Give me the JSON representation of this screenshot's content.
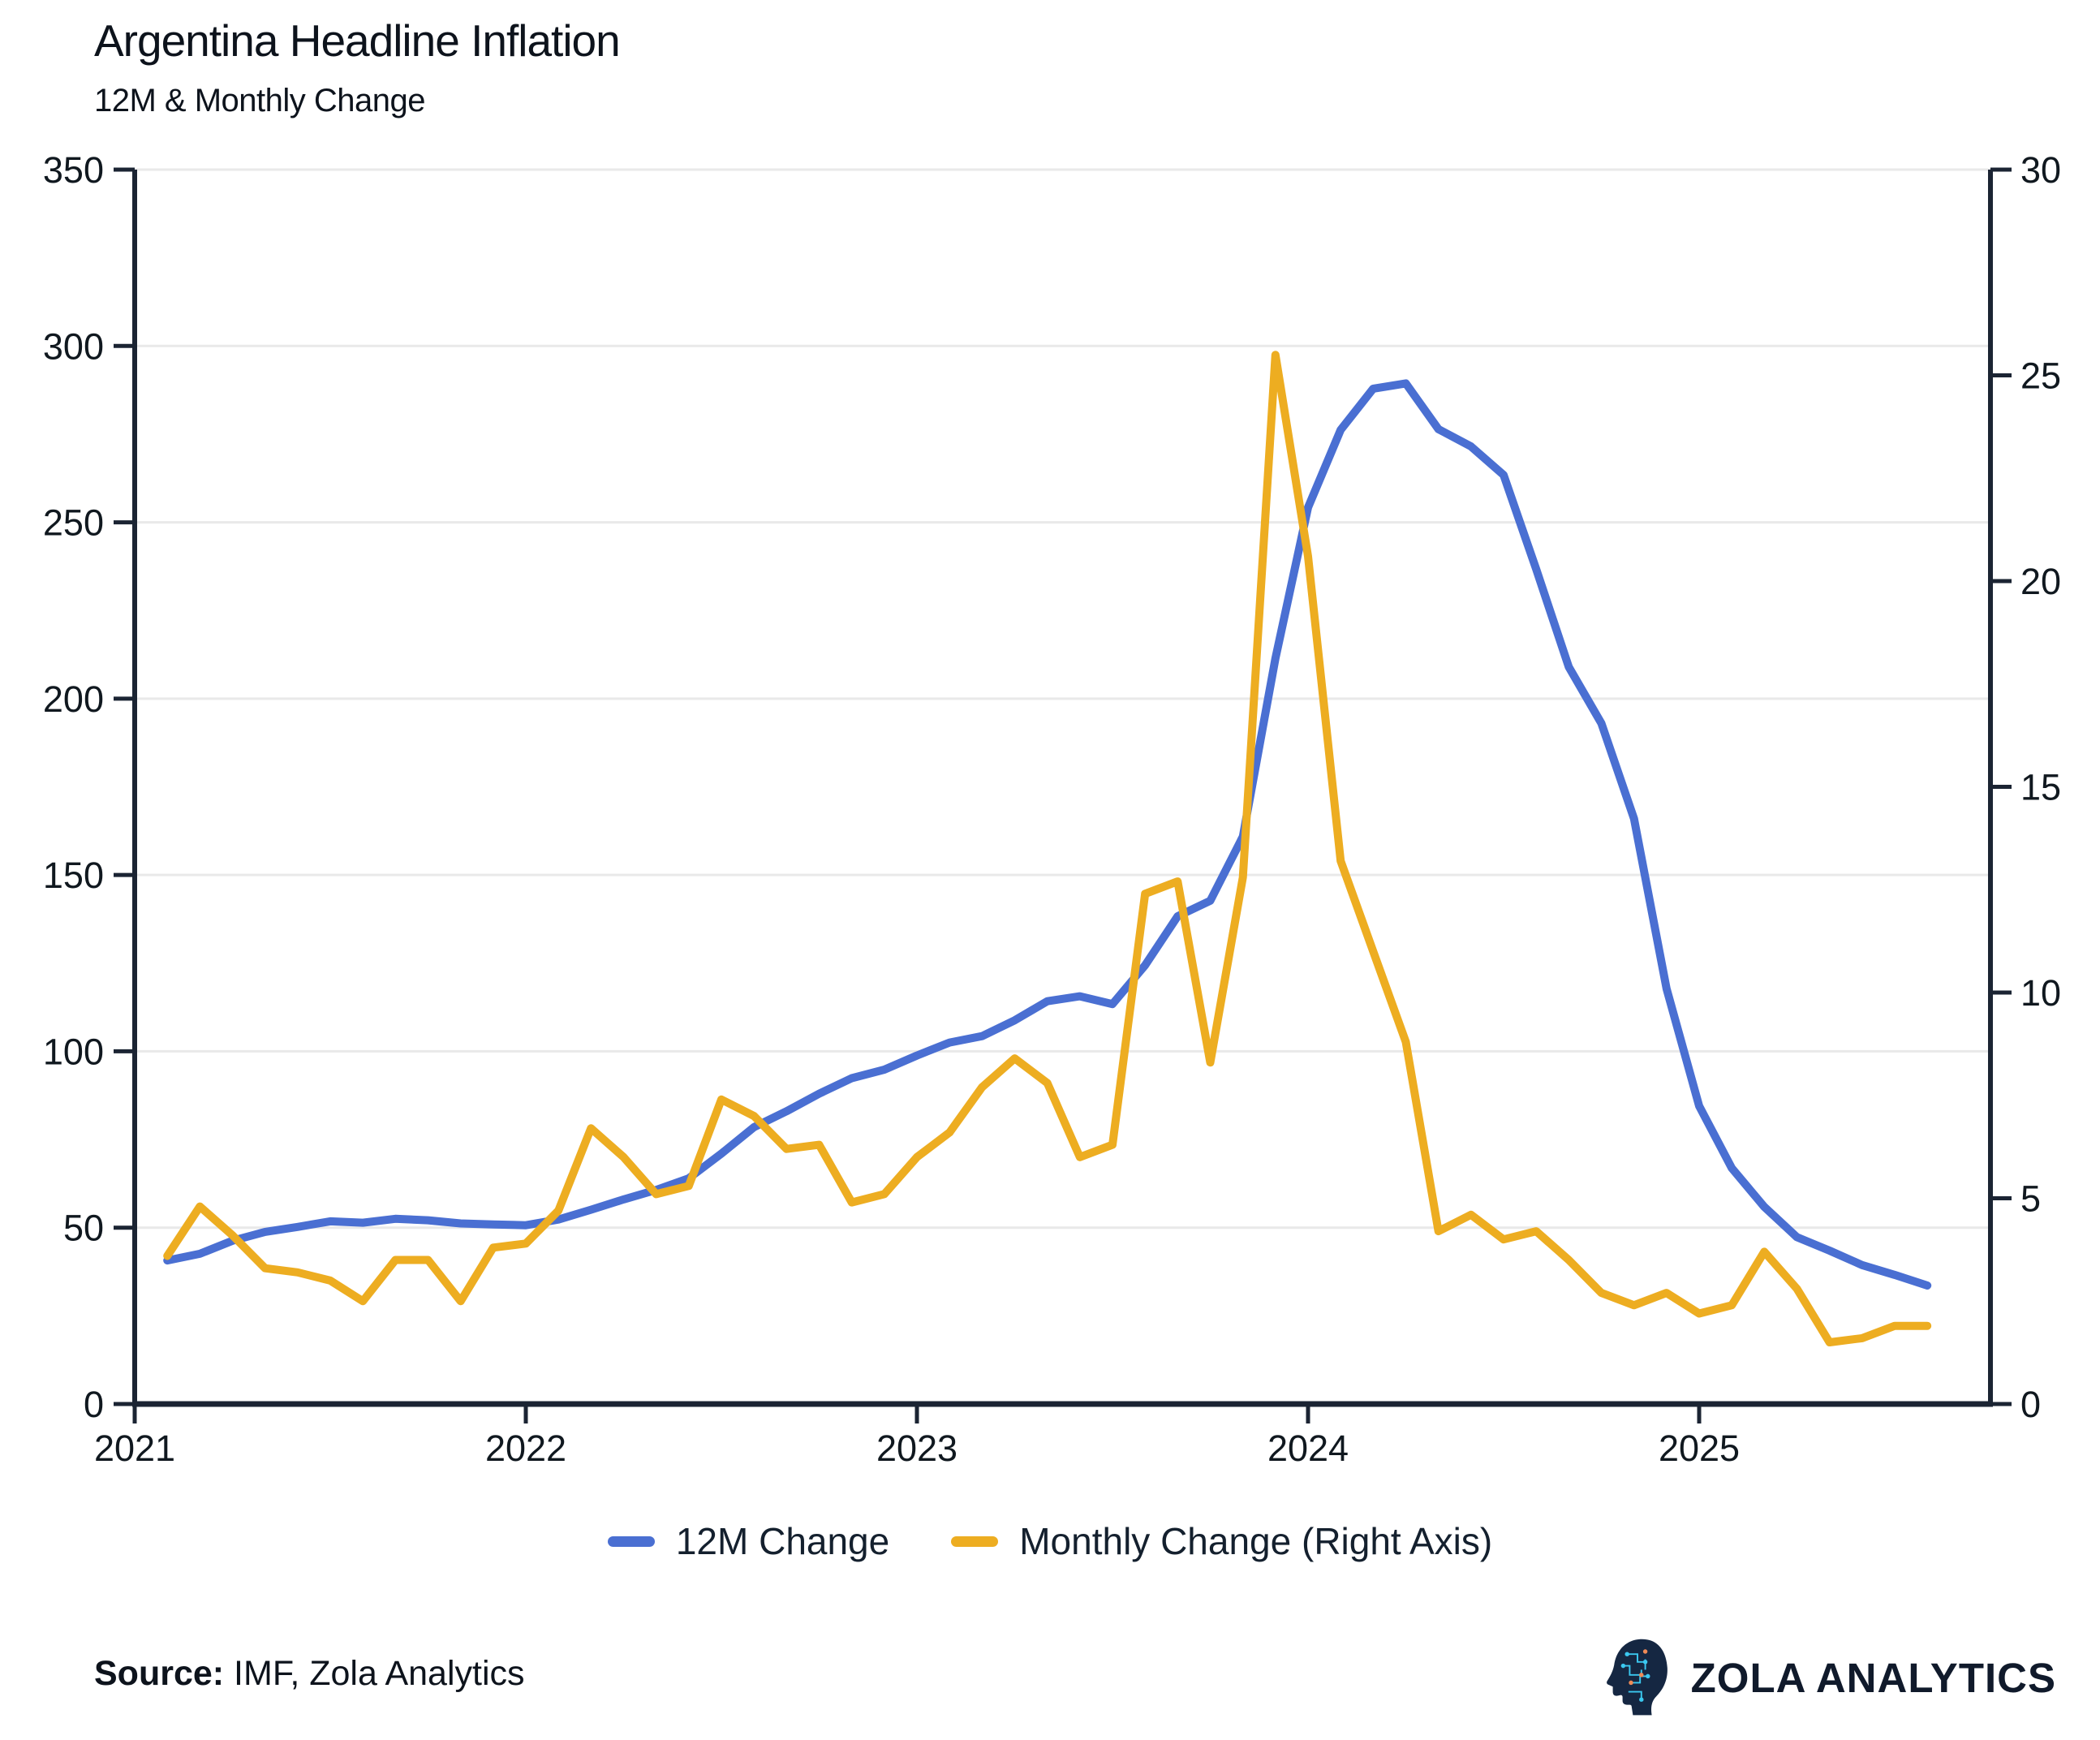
{
  "header": {
    "title": "Argentina Headline Inflation",
    "subtitle": "12M & Monthly Change"
  },
  "legend": [
    {
      "label": "12M Change",
      "color": "#4A6FD2"
    },
    {
      "label": "Monthly Change (Right Axis)",
      "color": "#EDAD21"
    }
  ],
  "footer": {
    "source_label": "Source:",
    "source_text": " IMF, Zola Analytics",
    "brand": "ZOLA ANALYTICS"
  },
  "colors": {
    "axis": "#1b2433",
    "tick_text": "#10181f",
    "grid": "#e9e9e9",
    "blue": "#4A6FD2",
    "yellow": "#EDAD21",
    "logo_navy": "#152742",
    "logo_cyan": "#3bc8f0",
    "logo_orange": "#ef8a56"
  },
  "chart_data": {
    "type": "line",
    "title": "Argentina Headline Inflation",
    "subtitle": "12M & Monthly Change",
    "x_months": [
      "2021-02",
      "2021-03",
      "2021-04",
      "2021-05",
      "2021-06",
      "2021-07",
      "2021-08",
      "2021-09",
      "2021-10",
      "2021-11",
      "2021-12",
      "2022-01",
      "2022-02",
      "2022-03",
      "2022-04",
      "2022-05",
      "2022-06",
      "2022-07",
      "2022-08",
      "2022-09",
      "2022-10",
      "2022-11",
      "2022-12",
      "2023-01",
      "2023-02",
      "2023-03",
      "2023-04",
      "2023-05",
      "2023-06",
      "2023-07",
      "2023-08",
      "2023-09",
      "2023-10",
      "2023-11",
      "2023-12",
      "2024-01",
      "2024-02",
      "2024-03",
      "2024-04",
      "2024-05",
      "2024-06",
      "2024-07",
      "2024-08",
      "2024-09",
      "2024-10",
      "2024-11",
      "2024-12",
      "2025-01",
      "2025-02",
      "2025-03",
      "2025-04",
      "2025-05",
      "2025-06",
      "2025-07",
      "2025-08"
    ],
    "series": [
      {
        "name": "12M Change",
        "axis": "left",
        "color": "#4A6FD2",
        "values": [
          40.7,
          42.6,
          46.3,
          48.8,
          50.2,
          51.8,
          51.4,
          52.5,
          52.1,
          51.2,
          50.9,
          50.7,
          52.3,
          55.1,
          58.0,
          60.7,
          64.0,
          71.0,
          78.5,
          83.0,
          88.0,
          92.4,
          94.8,
          98.8,
          102.5,
          104.3,
          108.8,
          114.2,
          115.6,
          113.4,
          124.4,
          138.3,
          142.7,
          160.9,
          211.4,
          254.2,
          276.2,
          287.9,
          289.4,
          276.4,
          271.5,
          263.4,
          236.7,
          209.0,
          193.0,
          166.0,
          117.8,
          84.5,
          66.9,
          55.9,
          47.3,
          43.5,
          39.4,
          36.6,
          33.6
        ]
      },
      {
        "name": "Monthly Change (Right Axis)",
        "axis": "right",
        "color": "#EDAD21",
        "values": [
          3.6,
          4.8,
          4.1,
          3.3,
          3.2,
          3.0,
          2.5,
          3.5,
          3.5,
          2.5,
          3.8,
          3.9,
          4.7,
          6.7,
          6.0,
          5.1,
          5.3,
          7.4,
          7.0,
          6.2,
          6.3,
          4.9,
          5.1,
          6.0,
          6.6,
          7.7,
          8.4,
          7.8,
          6.0,
          6.3,
          12.4,
          12.7,
          8.3,
          12.8,
          25.5,
          20.6,
          13.2,
          11.0,
          8.8,
          4.2,
          4.6,
          4.0,
          4.2,
          3.5,
          2.7,
          2.4,
          2.7,
          2.2,
          2.4,
          3.7,
          2.8,
          1.5,
          1.6,
          1.9,
          1.9
        ]
      }
    ],
    "x_tick_years": [
      "2021",
      "2022",
      "2023",
      "2024",
      "2025"
    ],
    "left_axis": {
      "min": 0,
      "max": 350,
      "ticks": [
        0,
        50,
        100,
        150,
        200,
        250,
        300,
        350
      ]
    },
    "right_axis": {
      "min": 0,
      "max": 30,
      "ticks": [
        0,
        5,
        10,
        15,
        20,
        25,
        30
      ]
    },
    "grid": "horizontal gridlines at left-axis ticks",
    "legend_position": "bottom-center"
  }
}
